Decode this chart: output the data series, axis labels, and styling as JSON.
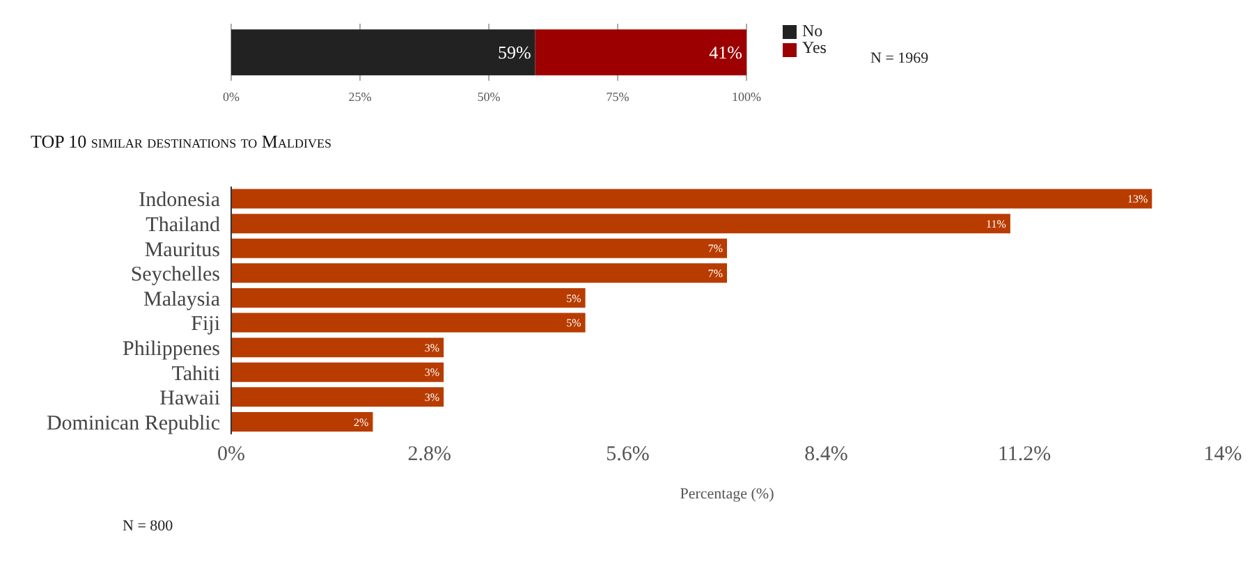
{
  "chart_data": [
    {
      "type": "bar",
      "orientation": "horizontal",
      "stacked": true,
      "categories": [
        null
      ],
      "series": [
        {
          "name": "No",
          "color": "#222222",
          "values": [
            59
          ],
          "value_labels": [
            "59%"
          ]
        },
        {
          "name": "Yes",
          "color": "#9c0000",
          "values": [
            41
          ],
          "value_labels": [
            "41%"
          ]
        }
      ],
      "xlim": [
        0,
        100
      ],
      "xticks": [
        {
          "value": 0,
          "label": "0%"
        },
        {
          "value": 25,
          "label": "25%"
        },
        {
          "value": 50,
          "label": "50%"
        },
        {
          "value": 75,
          "label": "75%"
        },
        {
          "value": 100,
          "label": "100%"
        }
      ],
      "grid": "x",
      "legend": "right",
      "annotations": [
        "N = 1969"
      ]
    },
    {
      "type": "bar",
      "orientation": "horizontal",
      "title": "TOP 10 similar destinations to Maldives",
      "xlabel": "Percentage (%)",
      "categories": [
        "Indonesia",
        "Thailand",
        "Mauritus",
        "Seychelles",
        "Malaysia",
        "Fiji",
        "Philippenes",
        "Tahiti",
        "Hawaii",
        "Dominican Republic"
      ],
      "values": [
        13,
        11,
        7,
        7,
        5,
        5,
        3,
        3,
        3,
        2
      ],
      "color": "#b83c00",
      "value_labels": [
        "13%",
        "11%",
        "7%",
        "7%",
        "5%",
        "5%",
        "3%",
        "3%",
        "3%",
        "2%"
      ],
      "xlim": [
        0,
        14
      ],
      "xticks": [
        {
          "value": 0,
          "label": "0%"
        },
        {
          "value": 2.8,
          "label": "2.8%"
        },
        {
          "value": 5.6,
          "label": "5.6%"
        },
        {
          "value": 8.4,
          "label": "8.4%"
        },
        {
          "value": 11.2,
          "label": "11.2%"
        },
        {
          "value": 14,
          "label": "14%"
        }
      ],
      "annotations": [
        "N = 800"
      ]
    }
  ]
}
